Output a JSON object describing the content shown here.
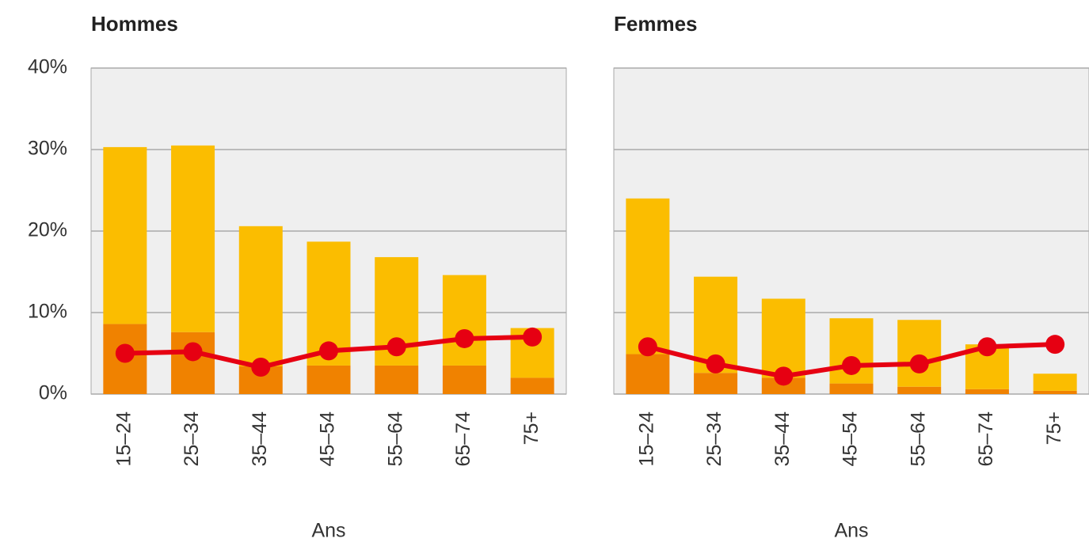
{
  "chart_data": [
    {
      "type": "bar-line",
      "title": "Hommes",
      "x_label": "Ans",
      "categories": [
        "15–24",
        "25–34",
        "35–44",
        "45–54",
        "55–64",
        "65–74",
        "75+"
      ],
      "stacked": true,
      "series": [
        {
          "color": "#f08200",
          "values": [
            8.6,
            7.6,
            3.4,
            3.5,
            3.5,
            3.5,
            2.0
          ]
        },
        {
          "color": "#fbbd00",
          "values": [
            21.7,
            22.9,
            17.2,
            15.2,
            13.3,
            11.1,
            6.1
          ]
        },
        {
          "color": "#e60012",
          "kind": "line",
          "values": [
            5.0,
            5.2,
            3.3,
            5.3,
            5.8,
            6.8,
            7.0
          ]
        }
      ],
      "ylim": [
        0,
        40
      ],
      "yticks": [
        {
          "value": 0,
          "label": "0%"
        },
        {
          "value": 10,
          "label": "10%"
        },
        {
          "value": 20,
          "label": "20%"
        },
        {
          "value": 30,
          "label": "30%"
        },
        {
          "value": 40,
          "label": "40%"
        }
      ],
      "grid": true,
      "ytick_labels": true
    },
    {
      "type": "bar-line",
      "title": "Femmes",
      "x_label": "Ans",
      "categories": [
        "15–24",
        "25–34",
        "35–44",
        "45–54",
        "55–64",
        "65–74",
        "75+"
      ],
      "stacked": true,
      "series": [
        {
          "color": "#f08200",
          "values": [
            4.9,
            2.6,
            2.0,
            1.3,
            0.9,
            0.6,
            0.4
          ]
        },
        {
          "color": "#fbbd00",
          "values": [
            19.1,
            11.8,
            9.7,
            8.0,
            8.2,
            5.5,
            2.1
          ]
        },
        {
          "color": "#e60012",
          "kind": "line",
          "values": [
            5.8,
            3.7,
            2.2,
            3.5,
            3.7,
            5.8,
            6.1
          ]
        }
      ],
      "ylim": [
        0,
        40
      ],
      "yticks": [
        0,
        10,
        20,
        30,
        40
      ],
      "grid": true,
      "ytick_labels": false
    }
  ]
}
